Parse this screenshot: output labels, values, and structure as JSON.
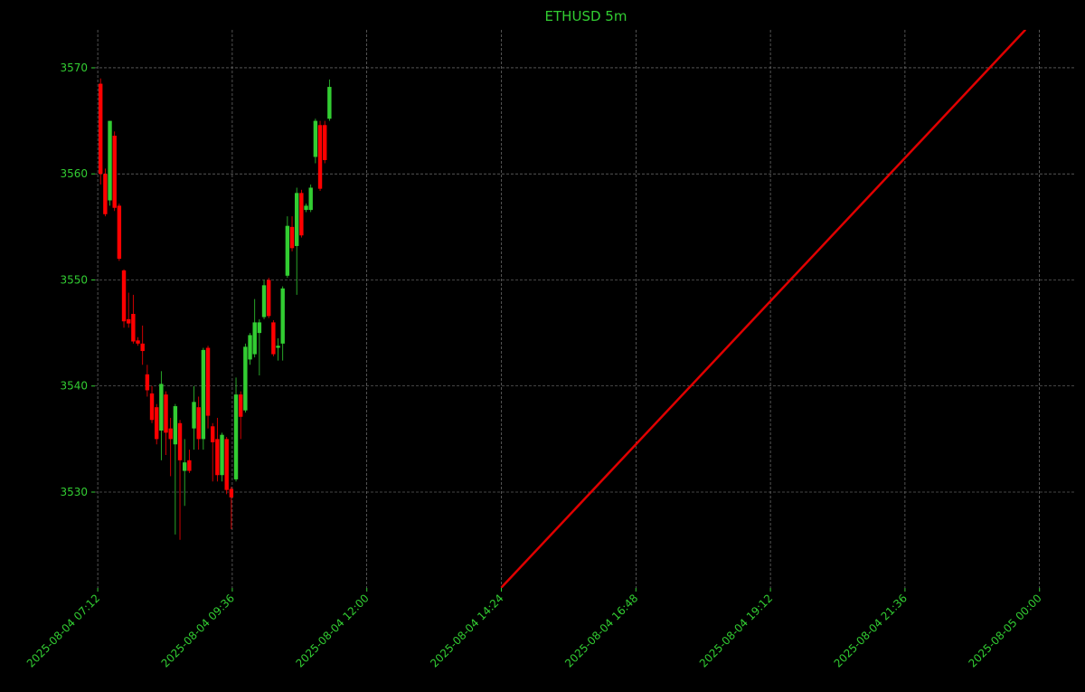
{
  "chart_data": {
    "type": "candlestick",
    "title": "ETHUSD 5m",
    "x": [
      "2025-08-04 07:15",
      "2025-08-04 07:20",
      "2025-08-04 07:25",
      "2025-08-04 07:30",
      "2025-08-04 07:35",
      "2025-08-04 07:40",
      "2025-08-04 07:45",
      "2025-08-04 07:50",
      "2025-08-04 07:55",
      "2025-08-04 08:00",
      "2025-08-04 08:05",
      "2025-08-04 08:10",
      "2025-08-04 08:15",
      "2025-08-04 08:20",
      "2025-08-04 08:25",
      "2025-08-04 08:30",
      "2025-08-04 08:35",
      "2025-08-04 08:40",
      "2025-08-04 08:45",
      "2025-08-04 08:50",
      "2025-08-04 08:55",
      "2025-08-04 09:00",
      "2025-08-04 09:05",
      "2025-08-04 09:10",
      "2025-08-04 09:15",
      "2025-08-04 09:20",
      "2025-08-04 09:25",
      "2025-08-04 09:30",
      "2025-08-04 09:35",
      "2025-08-04 09:40",
      "2025-08-04 09:45",
      "2025-08-04 09:50",
      "2025-08-04 09:55",
      "2025-08-04 10:00",
      "2025-08-04 10:05",
      "2025-08-04 10:10",
      "2025-08-04 10:15",
      "2025-08-04 10:20",
      "2025-08-04 10:25",
      "2025-08-04 10:30",
      "2025-08-04 10:35",
      "2025-08-04 10:40",
      "2025-08-04 10:45",
      "2025-08-04 10:50",
      "2025-08-04 10:55",
      "2025-08-04 11:00",
      "2025-08-04 11:05",
      "2025-08-04 11:10",
      "2025-08-04 11:15",
      "2025-08-04 11:20"
    ],
    "open": [
      3568.5,
      3560,
      3557.5,
      3563.6,
      3557,
      3550.9,
      3546.3,
      3546.8,
      3544.3,
      3544,
      3541.1,
      3539.3,
      3538,
      3535.8,
      3539.2,
      3536,
      3534.5,
      3536.5,
      3532,
      3533,
      3536,
      3538,
      3535,
      3543.6,
      3536.2,
      3535,
      3531.6,
      3535,
      3530.3,
      3531.2,
      3539.2,
      3537.7,
      3542.5,
      3543,
      3545,
      3546.5,
      3550,
      3546,
      3543.6,
      3544,
      3550.4,
      3555,
      3553.2,
      3558.2,
      3556.6,
      3556.6,
      3561.6,
      3564.6,
      3564.6,
      3565.2
    ],
    "high": [
      3569,
      3560.5,
      3565,
      3564,
      3557.2,
      3551,
      3548.8,
      3548.6,
      3544.6,
      3545.7,
      3542,
      3540,
      3538.3,
      3541.4,
      3539.5,
      3537,
      3538.3,
      3536.8,
      3535,
      3534,
      3540,
      3539,
      3543.6,
      3543.8,
      3536.5,
      3537,
      3535.6,
      3535.2,
      3530.5,
      3540.8,
      3539.5,
      3544,
      3545,
      3548.2,
      3546.3,
      3550,
      3550.2,
      3546.2,
      3544.5,
      3549.4,
      3556,
      3556,
      3558.7,
      3558.5,
      3557.2,
      3559,
      3565.2,
      3565,
      3565,
      3568.9
    ],
    "low": [
      3559,
      3556,
      3557,
      3556.5,
      3551.8,
      3545.5,
      3545.5,
      3544,
      3543.8,
      3542,
      3539,
      3536.5,
      3534.5,
      3533,
      3533.5,
      3531.5,
      3526,
      3525.5,
      3528.7,
      3531.8,
      3534,
      3534,
      3534,
      3536,
      3531,
      3531,
      3531,
      3529.8,
      3526.5,
      3531,
      3535,
      3537.5,
      3542,
      3542.7,
      3541,
      3546.3,
      3546.4,
      3542.8,
      3542.4,
      3542.4,
      3550.2,
      3552.7,
      3548.6,
      3554,
      3556.4,
      3556.4,
      3561,
      3558.4,
      3561,
      3565
    ],
    "close": [
      3560,
      3556.2,
      3565,
      3556.8,
      3552,
      3546.1,
      3545.9,
      3544.2,
      3544,
      3543.3,
      3539.6,
      3536.8,
      3535,
      3540.2,
      3535.6,
      3535,
      3538.1,
      3533,
      3532.8,
      3532,
      3538.5,
      3535,
      3543.4,
      3537.2,
      3534.7,
      3531.6,
      3535.4,
      3530.2,
      3529.5,
      3539.2,
      3537.1,
      3543.7,
      3544.8,
      3546,
      3546,
      3549.5,
      3546.6,
      3543,
      3543.8,
      3549.2,
      3555.1,
      3553,
      3558.2,
      3554.2,
      3557,
      3558.7,
      3565,
      3558.6,
      3561.3,
      3568.2
    ],
    "up_color": "#32cd32",
    "down_color": "#ff0000",
    "trend_line": {
      "x": [
        "2025-08-04 14:24",
        "2025-08-04 23:45"
      ],
      "values": [
        3521,
        3573.6
      ],
      "color": "#e00000"
    },
    "xlim": [
      "2025-08-04 07:09",
      "2025-08-05 00:39"
    ],
    "xticks": [
      "2025-08-04 07:12",
      "2025-08-04 09:36",
      "2025-08-04 12:00",
      "2025-08-04 14:24",
      "2025-08-04 16:48",
      "2025-08-04 19:12",
      "2025-08-04 21:36",
      "2025-08-05 00:00"
    ],
    "ylim": [
      3520.96,
      3573.58
    ],
    "yticks": [
      3530,
      3540,
      3550,
      3560,
      3570
    ],
    "grid": true
  }
}
